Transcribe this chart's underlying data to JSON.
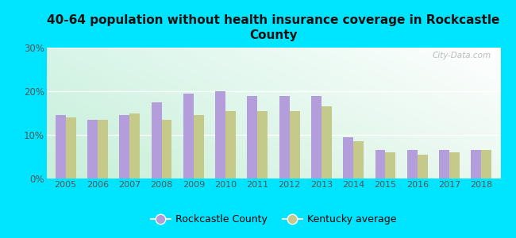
{
  "title": "40-64 population without health insurance coverage in Rockcastle\nCounty",
  "years": [
    2005,
    2006,
    2007,
    2008,
    2009,
    2010,
    2011,
    2012,
    2013,
    2014,
    2015,
    2016,
    2017,
    2018
  ],
  "rockcastle": [
    14.5,
    13.5,
    14.5,
    17.5,
    19.5,
    20.0,
    19.0,
    19.0,
    19.0,
    9.5,
    6.5,
    6.5,
    6.5,
    6.5
  ],
  "kentucky": [
    14.0,
    13.5,
    15.0,
    13.5,
    14.5,
    15.5,
    15.5,
    15.5,
    16.5,
    8.5,
    6.0,
    5.5,
    6.0,
    6.5
  ],
  "rockcastle_color": "#b39ddb",
  "kentucky_color": "#c5c98a",
  "background_color": "#00e5ff",
  "plot_bg_topleft": "#d6f5e8",
  "plot_bg_topright": "#ffffff",
  "plot_bg_bottomleft": "#c8efd8",
  "plot_bg_bottomright": "#eaf8f0",
  "ylim": [
    0,
    30
  ],
  "yticks": [
    0,
    10,
    20,
    30
  ],
  "ytick_labels": [
    "0%",
    "10%",
    "20%",
    "30%"
  ],
  "bar_width": 0.32,
  "legend_rockcastle": "Rockcastle County",
  "legend_kentucky": "Kentucky average",
  "watermark": "City-Data.com"
}
